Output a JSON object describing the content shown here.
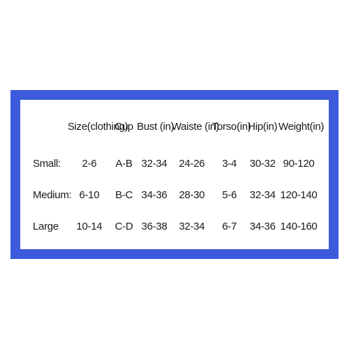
{
  "table": {
    "columns": [
      "",
      "Size(clothing)",
      "Cup",
      "Bust (in)",
      "Waiste (in)",
      "Torso(in)",
      "Hip(in)",
      "Weight(in)"
    ],
    "rows": [
      {
        "label": "Small:",
        "size": "2-6",
        "cup": "A-B",
        "bust": "32-34",
        "waist": "24-26",
        "torso": "3-4",
        "hip": "30-32",
        "weight": "90-120"
      },
      {
        "label": "Medium:",
        "size": "6-10",
        "cup": "B-C",
        "bust": "34-36",
        "waist": "28-30",
        "torso": "5-6",
        "hip": "32-34",
        "weight": "120-140"
      },
      {
        "label": "Large",
        "size": "10-14",
        "cup": "C-D",
        "bust": "36-38",
        "waist": "32-34",
        "torso": "6-7",
        "hip": "34-36",
        "weight": "140-160"
      }
    ],
    "border_color": "#3b5adc",
    "background_color": "#ffffff",
    "text_color": "#1a1a1a",
    "header_fontsize": 15,
    "cell_fontsize": 15
  }
}
